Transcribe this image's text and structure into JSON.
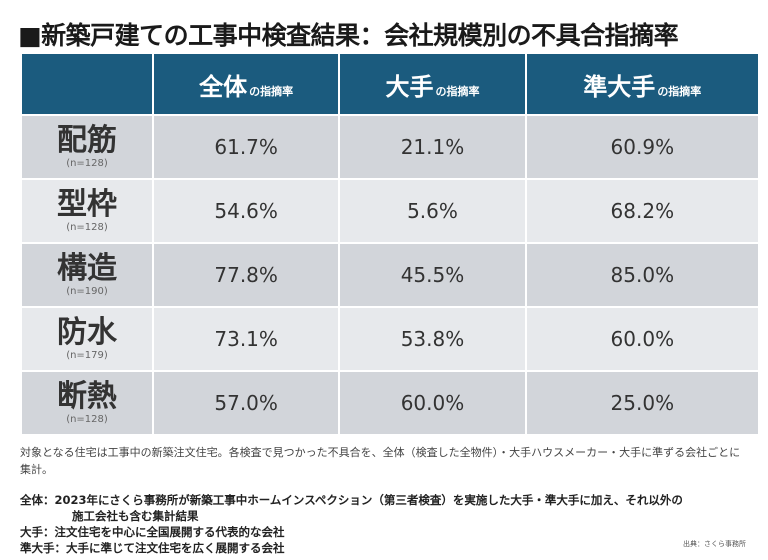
{
  "title": "■新築戸建ての工事中検査結果：会社規模別の不具合指摘率",
  "table": {
    "suffix": "の指摘率",
    "columns": [
      "全体",
      "大手",
      "準大手"
    ],
    "rows": [
      {
        "label": "配筋",
        "n": "(n=128)",
        "values": [
          "61.7%",
          "21.1%",
          "60.9%"
        ]
      },
      {
        "label": "型枠",
        "n": "(n=128)",
        "values": [
          "54.6%",
          "5.6%",
          "68.2%"
        ]
      },
      {
        "label": "構造",
        "n": "(n=190)",
        "values": [
          "77.8%",
          "45.5%",
          "85.0%"
        ]
      },
      {
        "label": "防水",
        "n": "(n=179)",
        "values": [
          "73.1%",
          "53.8%",
          "60.0%"
        ]
      },
      {
        "label": "断熱",
        "n": "(n=128)",
        "values": [
          "57.0%",
          "60.0%",
          "25.0%"
        ]
      }
    ]
  },
  "note": "対象となる住宅は工事中の新築注文住宅。各検査で見つかった不具合を、全体（検査した全物件）・大手ハウスメーカー・大手に準ずる会社ごとに集計。",
  "definitions": {
    "all_1": "全体：2023年にさくら事務所が新築工事中ホームインスペクション（第三者検査）を実施した大手・準大手に加え、それ以外の",
    "all_2": "施工会社も含む集計結果",
    "major": "大手：注文住宅を中心に全国展開する代表的な会社",
    "semi": "準大手：大手に準じて注文住宅を広く展開する会社"
  },
  "source": "出典：さくら事務所",
  "colors": {
    "header": "#1b5b7e",
    "row_dark": "#d2d5da",
    "row_light": "#e7e9ec"
  }
}
